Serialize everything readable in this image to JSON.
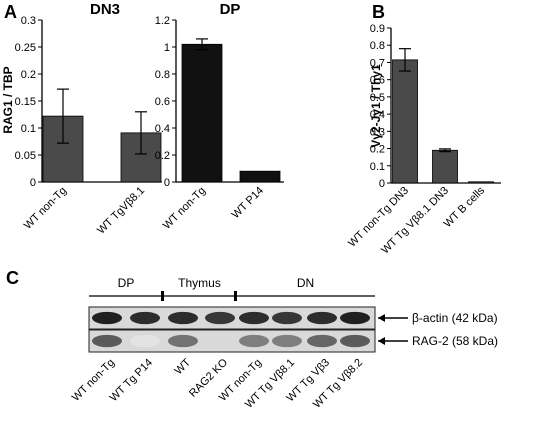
{
  "panels": {
    "A": "A",
    "B": "B",
    "C": "C"
  },
  "chart_data": [
    {
      "type": "bar",
      "panel": "A",
      "title": "DN3",
      "ylabel": "RAG1 / TBP",
      "ylim": [
        0,
        0.3
      ],
      "yticks": [
        "0",
        "0.05",
        "0.1",
        "0.15",
        "0.2",
        "0.25",
        "0.3"
      ],
      "categories": [
        "WT non-Tg",
        "WT TgVβ8.1"
      ],
      "values": [
        0.122,
        0.091
      ],
      "errors": [
        0.05,
        0.039
      ],
      "color": "#4a4a4a"
    },
    {
      "type": "bar",
      "panel": "A",
      "title": "DP",
      "ylabel": "",
      "ylim": [
        0,
        1.2
      ],
      "yticks": [
        "0",
        "0.2",
        "0.4",
        "0.6",
        "0.8",
        "1",
        "1.2"
      ],
      "categories": [
        "WT non-Tg",
        "WT P14"
      ],
      "values": [
        1.02,
        0.08
      ],
      "errors": [
        0.04,
        0.0
      ],
      "color": "#111111"
    },
    {
      "type": "bar",
      "panel": "B",
      "title": "",
      "ylabel": "Vγ2-Jγ1 / Thy1",
      "ylim": [
        0,
        0.9
      ],
      "yticks": [
        "0",
        "0.1",
        "0.2",
        "0.3",
        "0.4",
        "0.5",
        "0.6",
        "0.7",
        "0.8",
        "0.9"
      ],
      "categories": [
        "WT non-Tg DN3",
        "WT Tg Vβ8.1 DN3",
        "WT B cells"
      ],
      "values": [
        0.715,
        0.19,
        0.004
      ],
      "errors": [
        0.065,
        0.008,
        0.0
      ],
      "color": "#4a4a4a"
    }
  ],
  "blot": {
    "groups": [
      {
        "label": "DP",
        "lanes": [
          0,
          1
        ]
      },
      {
        "label": "Thymus",
        "lanes": [
          2,
          3
        ]
      },
      {
        "label": "DN",
        "lanes": [
          4,
          7
        ]
      }
    ],
    "rows": [
      {
        "label": "β-actin  (42 kDa)",
        "intensity": [
          0.95,
          0.9,
          0.9,
          0.85,
          0.9,
          0.85,
          0.9,
          0.95
        ]
      },
      {
        "label": "RAG-2  (58 kDa)",
        "intensity": [
          0.7,
          0.12,
          0.6,
          0.0,
          0.55,
          0.55,
          0.65,
          0.7
        ]
      }
    ],
    "lanes": [
      "WT non-Tg",
      "WT Tg P14",
      "WT",
      "RAG2 KO",
      "WT non-Tg",
      "WT Tg Vβ8.1",
      "WT Tg Vβ3",
      "WT Tg Vβ8.2"
    ]
  }
}
